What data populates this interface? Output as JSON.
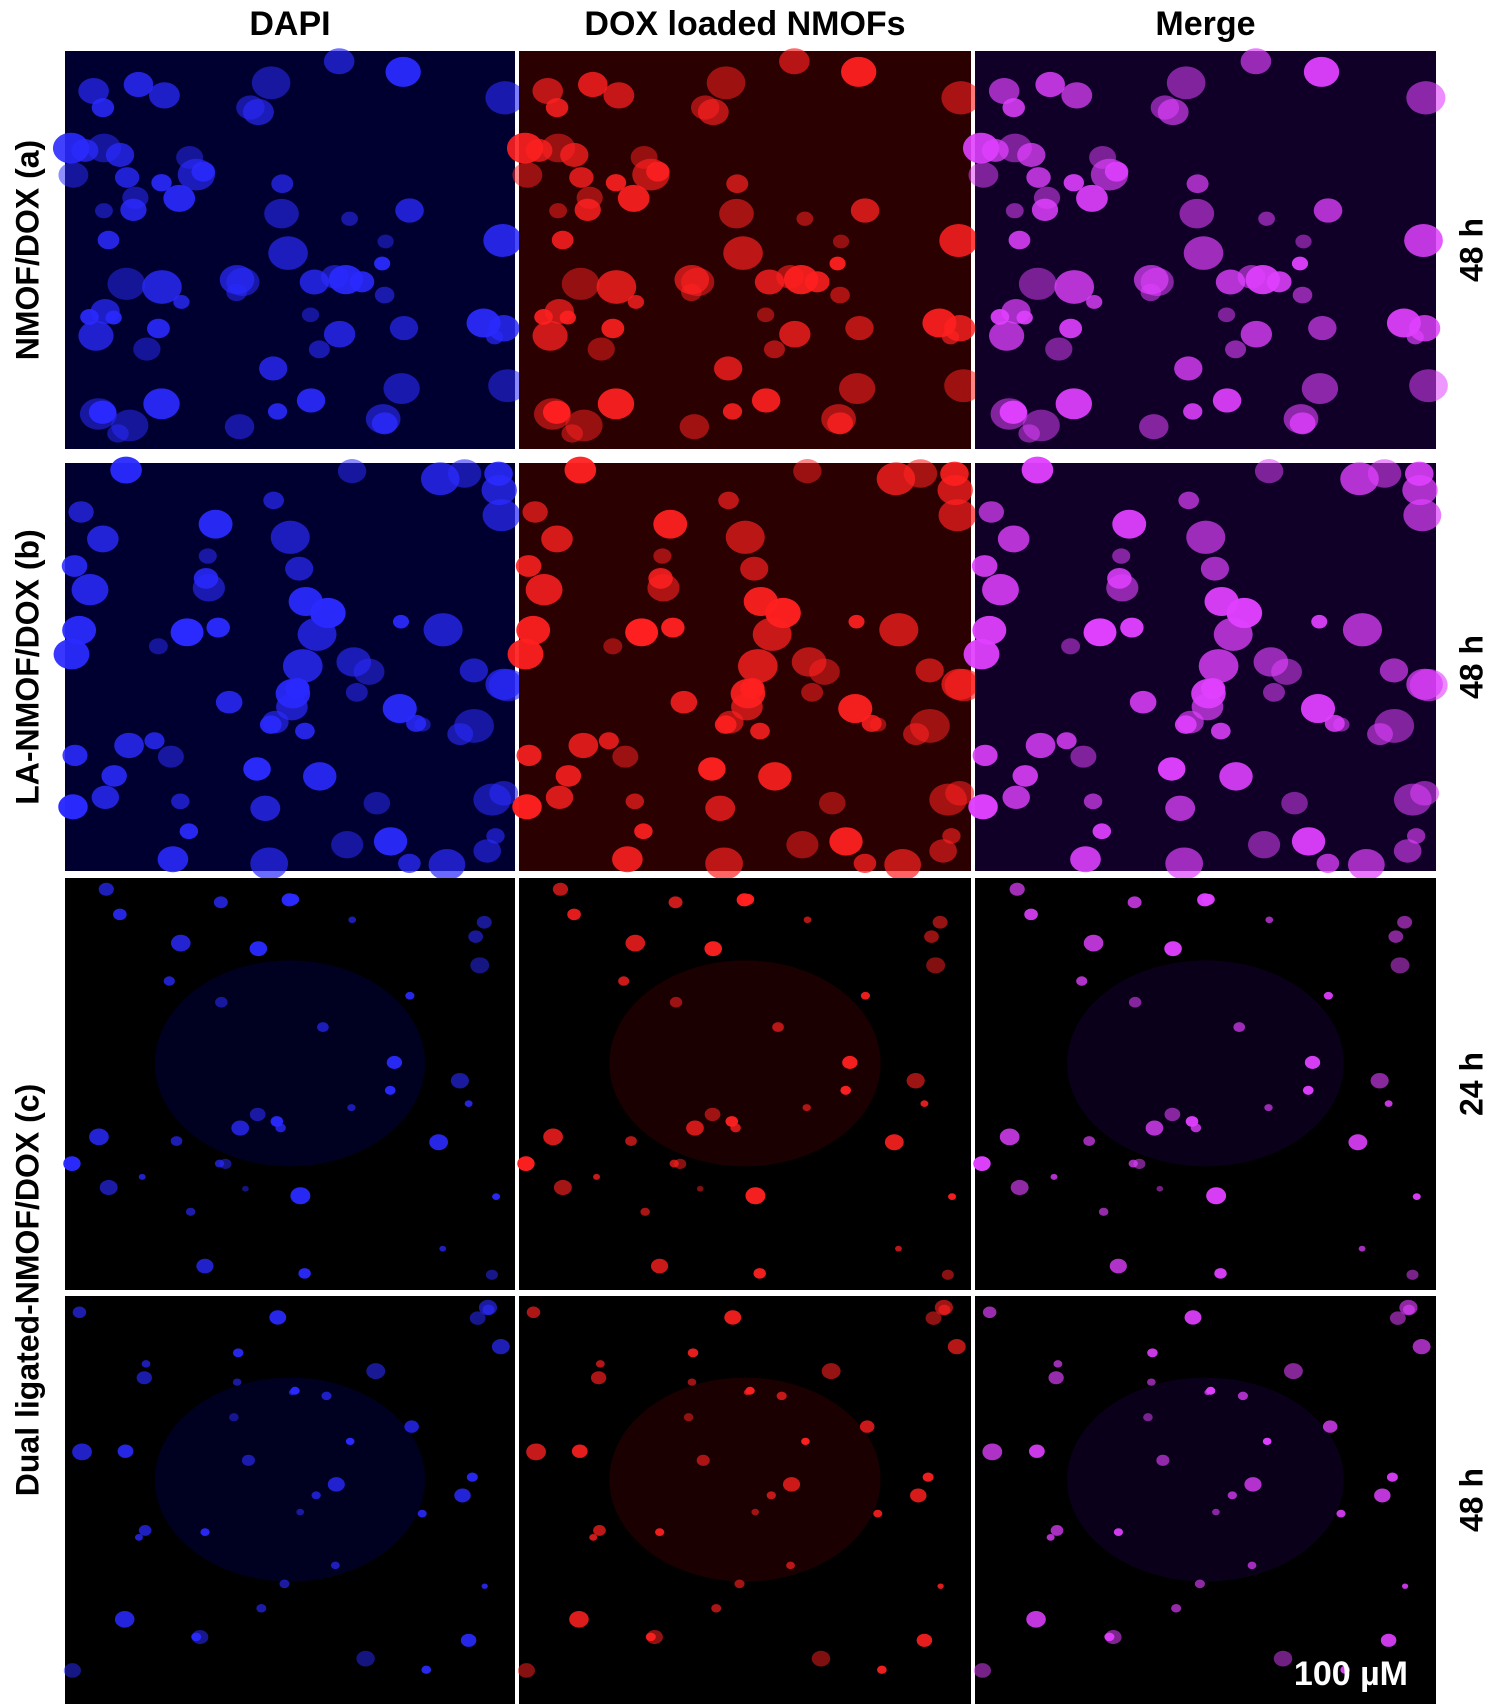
{
  "column_headers": [
    "DAPI",
    "DOX loaded NMOFs",
    "Merge"
  ],
  "rows": [
    {
      "label": "NMOF/DOX (a)",
      "time": "48 h"
    },
    {
      "label": "LA-NMOF/DOX (b)",
      "time": "48 h"
    },
    {
      "label": "Dual ligated-NMOF/DOX (c)",
      "time": "24 h"
    },
    {
      "label": "",
      "time": "48 h"
    }
  ],
  "scale_bar": "100 µM"
}
